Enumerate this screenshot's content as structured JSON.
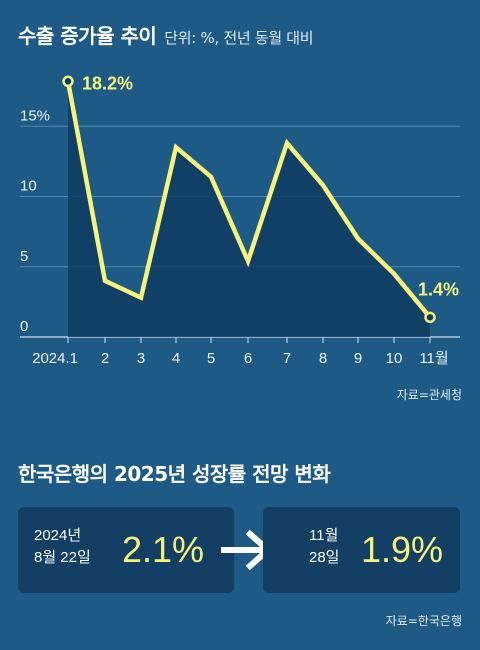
{
  "header": {
    "title": "수출 증가율 추이",
    "subtitle": "단위: %, 전년 동월 대비"
  },
  "chart_source": "자료=관세청",
  "chart_data": {
    "type": "area",
    "title": "수출 증가율 추이",
    "unit_note": "단위: %, 전년 동월 대비",
    "categories": [
      "2024.1",
      "2",
      "3",
      "4",
      "5",
      "6",
      "7",
      "8",
      "9",
      "10",
      "11월"
    ],
    "values": [
      18.2,
      4.0,
      2.8,
      13.5,
      11.4,
      5.4,
      13.8,
      10.8,
      7.0,
      4.5,
      1.4
    ],
    "ylim": [
      0,
      20
    ],
    "yticks": [
      0,
      5,
      10,
      15
    ],
    "ytick_labels": [
      "0",
      "5",
      "10",
      "15%"
    ],
    "annotations": [
      {
        "index": 0,
        "text": "18.2%"
      },
      {
        "index": 10,
        "text": "1.4%"
      }
    ],
    "grid": true,
    "colors": {
      "line": "#f6f37a",
      "area": "#0f3c60",
      "grid": "#4f86ad"
    }
  },
  "forecast": {
    "title": "한국은행의 2025년 성장률 전망 변화",
    "before": {
      "date_line1": "2024년",
      "date_line2": "8월 22일",
      "value": "2.1%"
    },
    "after": {
      "date_line1": "11월",
      "date_line2": "28일",
      "value": "1.9%"
    },
    "arrow_icon": "arrow-right-icon",
    "source": "자료=한국은행"
  }
}
